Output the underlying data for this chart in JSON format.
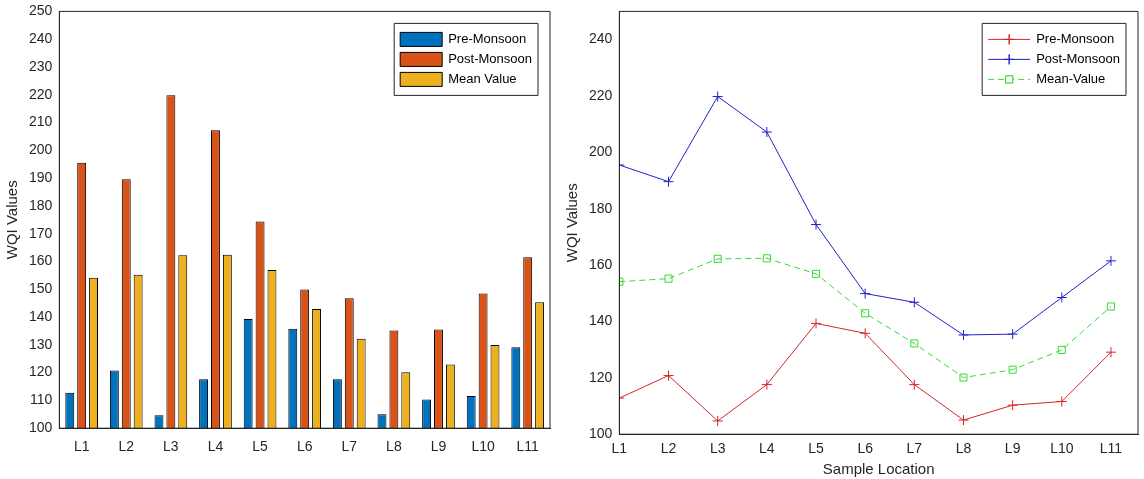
{
  "chart_data": [
    {
      "type": "bar",
      "ylabel": "WQI Values",
      "categories": [
        "L1",
        "L2",
        "L3",
        "L4",
        "L5",
        "L6",
        "L7",
        "L8",
        "L9",
        "L10",
        "L11"
      ],
      "series": [
        {
          "name": "Pre-Monsoon",
          "color": "#0072bd",
          "values": [
            112.8,
            120.8,
            104.7,
            117.6,
            139.3,
            135.8,
            117.6,
            105.0,
            110.3,
            111.6,
            129.1
          ]
        },
        {
          "name": "Post-Monsoon",
          "color": "#d95319",
          "values": [
            195.5,
            189.6,
            219.8,
            207.2,
            174.4,
            149.9,
            146.8,
            135.2,
            135.5,
            148.5,
            161.5
          ]
        },
        {
          "name": "Mean Value",
          "color": "#edb120",
          "values": [
            154.1,
            155.2,
            162.2,
            162.4,
            156.9,
            142.9,
            132.2,
            120.1,
            122.9,
            129.9,
            145.3
          ]
        }
      ],
      "ylim": [
        100,
        250
      ],
      "yticks": [
        100,
        110,
        120,
        130,
        140,
        150,
        160,
        170,
        180,
        190,
        200,
        210,
        220,
        230,
        240,
        250
      ],
      "grid": false,
      "legend": "top right"
    },
    {
      "type": "line",
      "xlabel": "Sample Location",
      "ylabel": "WQI Values",
      "categories": [
        "L1",
        "L2",
        "L3",
        "L4",
        "L5",
        "L6",
        "L7",
        "L8",
        "L9",
        "L10",
        "L11"
      ],
      "series": [
        {
          "name": "Pre-Monsoon",
          "color": "#d62728",
          "marker": "cross",
          "line_style": "solid",
          "values": [
            112.8,
            120.8,
            104.7,
            117.6,
            139.3,
            135.8,
            117.6,
            105.0,
            110.3,
            111.6,
            129.1
          ]
        },
        {
          "name": "Post-Monsoon",
          "color": "#2222cc",
          "marker": "cross",
          "line_style": "solid",
          "values": [
            195.5,
            189.6,
            219.8,
            207.2,
            174.4,
            149.9,
            146.8,
            135.2,
            135.5,
            148.5,
            161.5
          ]
        },
        {
          "name": "Mean-Value",
          "color": "#33dd33",
          "marker": "square",
          "line_style": "dashed",
          "values": [
            154.1,
            155.2,
            162.2,
            162.4,
            156.9,
            142.9,
            132.2,
            120.1,
            122.9,
            129.9,
            145.3
          ]
        }
      ],
      "ylim": [
        100,
        250
      ],
      "yticks": [
        100,
        120,
        140,
        160,
        180,
        200,
        220,
        240
      ],
      "grid": false,
      "legend": "top right"
    }
  ]
}
